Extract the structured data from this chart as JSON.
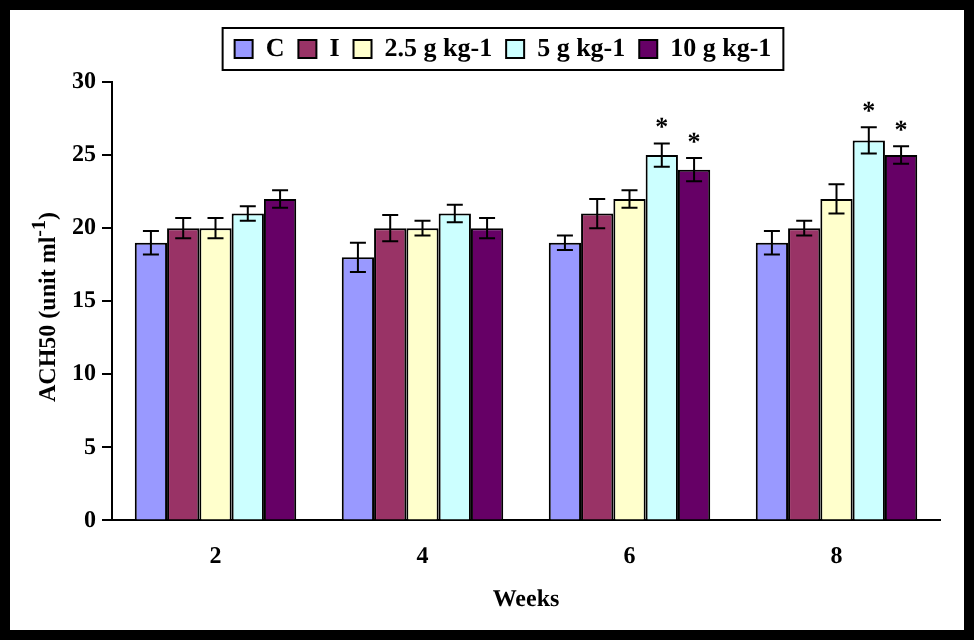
{
  "chart_data": {
    "type": "bar",
    "xlabel": "Weeks",
    "ylabel": "ACH50 (unit ml$^{-1}$)",
    "categories": [
      "2",
      "4",
      "6",
      "8"
    ],
    "series": [
      {
        "name": "C",
        "color": "#9999ff",
        "values": [
          19,
          18,
          19,
          19
        ],
        "errors": [
          0.8,
          1,
          0.5,
          0.8
        ]
      },
      {
        "name": "I",
        "color": "#993366",
        "values": [
          20,
          20,
          21,
          20
        ],
        "errors": [
          0.7,
          0.9,
          1,
          0.5
        ]
      },
      {
        "name": "2.5 g kg-1",
        "color": "#ffffcc",
        "values": [
          20,
          20,
          22,
          22
        ],
        "errors": [
          0.7,
          0.5,
          0.6,
          1
        ]
      },
      {
        "name": "5 g kg-1",
        "color": "#ccffff",
        "values": [
          21,
          21,
          25,
          26
        ],
        "errors": [
          0.5,
          0.6,
          0.8,
          0.9
        ],
        "value_labels": [
          null,
          null,
          "*",
          "*"
        ]
      },
      {
        "name": "10 g kg-1",
        "color": "#660066",
        "values": [
          22,
          20,
          24,
          25
        ],
        "errors": [
          0.6,
          0.7,
          0.8,
          0.6
        ],
        "value_labels": [
          null,
          null,
          "*",
          "*"
        ]
      }
    ],
    "ylim": [
      0,
      30
    ],
    "yticks": [
      0,
      5,
      10,
      15,
      20,
      25,
      30
    ],
    "grid": false,
    "legend": "top"
  }
}
